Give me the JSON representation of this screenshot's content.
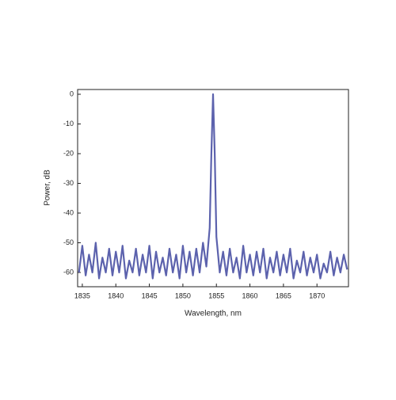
{
  "chart_data": {
    "type": "line",
    "x_label": "Wavelength, nm",
    "y_label": "Power, dB",
    "xlim": [
      1834.3,
      1874.7
    ],
    "ylim": [
      -64.8,
      1.6
    ],
    "xticks": [
      1835,
      1840,
      1845,
      1850,
      1855,
      1860,
      1865,
      1870
    ],
    "yticks": [
      0,
      -10,
      -20,
      -30,
      -40,
      -50,
      -60
    ],
    "series": [
      {
        "color": "#5c62ad",
        "x": [
          1834.5,
          1835,
          1835.5,
          1836,
          1836.5,
          1837,
          1837.5,
          1838,
          1838.5,
          1839,
          1839.5,
          1840,
          1840.5,
          1841,
          1841.5,
          1842,
          1842.5,
          1843,
          1843.5,
          1844,
          1844.5,
          1845,
          1845.5,
          1846,
          1846.5,
          1847,
          1847.5,
          1848,
          1848.5,
          1849,
          1849.5,
          1850,
          1850.5,
          1851,
          1851.5,
          1852,
          1852.5,
          1853,
          1853.5,
          1854,
          1854.25,
          1854.5,
          1854.75,
          1855,
          1855.5,
          1856,
          1856.5,
          1857,
          1857.5,
          1858,
          1858.5,
          1859,
          1859.5,
          1860,
          1860.5,
          1861,
          1861.5,
          1862,
          1862.5,
          1863,
          1863.5,
          1864,
          1864.5,
          1865,
          1865.5,
          1866,
          1866.5,
          1867,
          1867.5,
          1868,
          1868.5,
          1869,
          1869.5,
          1870,
          1870.5,
          1871,
          1871.5,
          1872,
          1872.5,
          1873,
          1873.5,
          1874,
          1874.5
        ],
        "values": [
          -60,
          -51,
          -61,
          -54,
          -60,
          -50,
          -62,
          -55,
          -60,
          -52,
          -61,
          -53,
          -60,
          -51,
          -62,
          -56,
          -60,
          -52,
          -61,
          -54,
          -60,
          -51,
          -62,
          -53,
          -60,
          -55,
          -61,
          -52,
          -60,
          -54,
          -62,
          -51,
          -60,
          -53,
          -61,
          -52,
          -60,
          -50,
          -58,
          -45,
          -20,
          0,
          -20,
          -48,
          -60,
          -53,
          -61,
          -52,
          -60,
          -55,
          -62,
          -51,
          -60,
          -54,
          -61,
          -53,
          -60,
          -52,
          -62,
          -55,
          -60,
          -53,
          -61,
          -54,
          -60,
          -52,
          -62,
          -56,
          -60,
          -53,
          -61,
          -55,
          -60,
          -54,
          -62,
          -57,
          -60,
          -53,
          -61,
          -55,
          -60,
          -54,
          -59
        ]
      }
    ]
  }
}
